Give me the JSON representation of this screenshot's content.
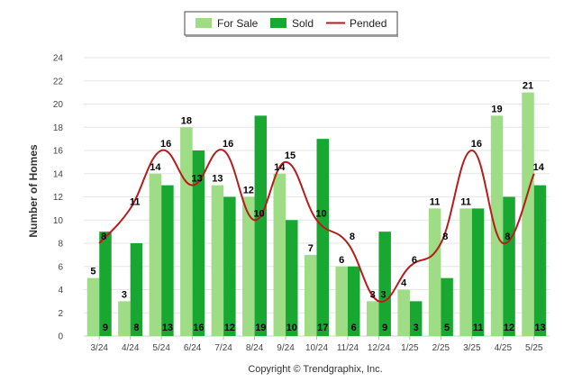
{
  "footer": "Copyright © Trendgraphix, Inc.",
  "colors": {
    "for_sale": "#9edc86",
    "sold": "#18a832",
    "pended": "#b71c1c",
    "grid": "#e6e6e6"
  },
  "chart_data": {
    "type": "bar",
    "title": "",
    "xlabel": "",
    "ylabel": "Number of Homes",
    "ylim": [
      0,
      24
    ],
    "yticks": [
      0,
      2,
      4,
      6,
      8,
      10,
      12,
      14,
      16,
      18,
      20,
      22,
      24
    ],
    "grid": true,
    "legend_position": "top-center",
    "categories": [
      "3/24",
      "4/24",
      "5/24",
      "6/24",
      "7/24",
      "8/24",
      "9/24",
      "10/24",
      "11/24",
      "12/24",
      "1/25",
      "2/25",
      "3/25",
      "4/25",
      "5/25"
    ],
    "series": [
      {
        "name": "For Sale",
        "kind": "bar",
        "values": [
          5,
          3,
          14,
          18,
          13,
          12,
          14,
          7,
          6,
          3,
          4,
          11,
          11,
          19,
          21
        ]
      },
      {
        "name": "Sold",
        "kind": "bar",
        "values": [
          9,
          8,
          13,
          16,
          12,
          19,
          10,
          17,
          6,
          9,
          3,
          5,
          11,
          12,
          13
        ]
      },
      {
        "name": "Pended",
        "kind": "line",
        "values": [
          8,
          11,
          16,
          13,
          16,
          10,
          15,
          10,
          8,
          3,
          6,
          8,
          16,
          8,
          14
        ]
      }
    ]
  }
}
